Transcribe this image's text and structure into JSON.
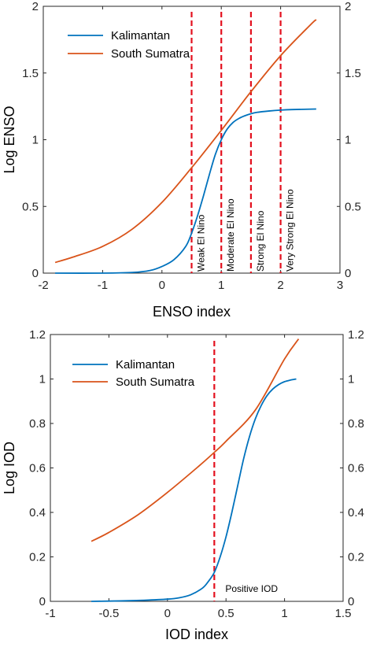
{
  "colors": {
    "kalimantan": "#0072BD",
    "south_sumatra": "#D95319",
    "threshold": "#E3101E",
    "axis": "#262626"
  },
  "chart_data": [
    {
      "type": "line",
      "xlabel": "ENSO index",
      "ylabel": "Log ENSO",
      "xlim": [
        -2,
        3
      ],
      "ylim": [
        0,
        2
      ],
      "xticks": [
        -2,
        -1,
        0,
        1,
        2,
        3
      ],
      "yticks": [
        0,
        0.5,
        1,
        1.5,
        2
      ],
      "xtick_labels": [
        "-2",
        "-1",
        "0",
        "1",
        "2",
        "3"
      ],
      "ytick_labels": [
        "0",
        "0.5",
        "1",
        "1.5",
        "2"
      ],
      "right_ytick_labels": [
        "0",
        "0.5",
        "1",
        "1.5",
        "2"
      ],
      "legend_position": "top-left",
      "series": [
        {
          "name": "Kalimantan",
          "color": "#0072BD",
          "x": [
            -1.8,
            -1.0,
            -0.5,
            -0.2,
            0.0,
            0.2,
            0.4,
            0.5,
            0.6,
            0.7,
            0.8,
            0.9,
            1.0,
            1.1,
            1.2,
            1.3,
            1.4,
            1.5,
            1.6,
            1.8,
            2.0,
            2.2,
            2.6
          ],
          "y": [
            0.0,
            0.0,
            0.005,
            0.02,
            0.05,
            0.1,
            0.2,
            0.3,
            0.43,
            0.58,
            0.74,
            0.89,
            1.0,
            1.08,
            1.13,
            1.16,
            1.18,
            1.195,
            1.205,
            1.215,
            1.222,
            1.226,
            1.23
          ]
        },
        {
          "name": "South Sumatra",
          "color": "#D95319",
          "x": [
            -1.8,
            -1.5,
            -1.0,
            -0.5,
            0.0,
            0.5,
            1.0,
            1.5,
            2.0,
            2.5,
            2.6
          ],
          "y": [
            0.08,
            0.12,
            0.2,
            0.33,
            0.53,
            0.79,
            1.07,
            1.36,
            1.63,
            1.86,
            1.9
          ]
        }
      ],
      "thresholds": [
        {
          "x": 0.5,
          "label": "Weak El Nino"
        },
        {
          "x": 1.0,
          "label": "Moderate El Nino"
        },
        {
          "x": 1.5,
          "label": "Strong El Nino"
        },
        {
          "x": 2.0,
          "label": "Very Strong El Nino"
        }
      ]
    },
    {
      "type": "line",
      "xlabel": "IOD index",
      "ylabel": "Log IOD",
      "xlim": [
        -1,
        1.5
      ],
      "ylim": [
        0,
        1.2
      ],
      "xticks": [
        -1,
        -0.5,
        0,
        0.5,
        1,
        1.5
      ],
      "yticks": [
        0,
        0.2,
        0.4,
        0.6,
        0.8,
        1,
        1.2
      ],
      "xtick_labels": [
        "-1",
        "-0.5",
        "0",
        "0.5",
        "1",
        "1.5"
      ],
      "ytick_labels": [
        "0",
        "0.2",
        "0.4",
        "0.6",
        "0.8",
        "1",
        "1.2"
      ],
      "right_ytick_labels": [
        "0",
        "0.2",
        "0.4",
        "0.6",
        "0.8",
        "1",
        "1.2"
      ],
      "legend_position": "top-left",
      "series": [
        {
          "name": "Kalimantan",
          "color": "#0072BD",
          "x": [
            -0.65,
            -0.4,
            -0.2,
            0.0,
            0.1,
            0.2,
            0.3,
            0.35,
            0.4,
            0.45,
            0.5,
            0.55,
            0.6,
            0.65,
            0.7,
            0.75,
            0.8,
            0.85,
            0.9,
            0.95,
            1.0,
            1.05,
            1.1
          ],
          "y": [
            0.0,
            0.002,
            0.005,
            0.01,
            0.016,
            0.03,
            0.06,
            0.09,
            0.13,
            0.2,
            0.29,
            0.4,
            0.52,
            0.64,
            0.74,
            0.82,
            0.88,
            0.925,
            0.955,
            0.975,
            0.988,
            0.995,
            1.0
          ]
        },
        {
          "name": "South Sumatra",
          "color": "#D95319",
          "x": [
            -0.65,
            -0.5,
            -0.25,
            0.0,
            0.25,
            0.4,
            0.5,
            0.75,
            1.0,
            1.12
          ],
          "y": [
            0.27,
            0.31,
            0.39,
            0.49,
            0.6,
            0.67,
            0.72,
            0.86,
            1.09,
            1.18
          ]
        }
      ],
      "thresholds": [
        {
          "x": 0.4,
          "label": "Positive IOD"
        }
      ]
    }
  ]
}
